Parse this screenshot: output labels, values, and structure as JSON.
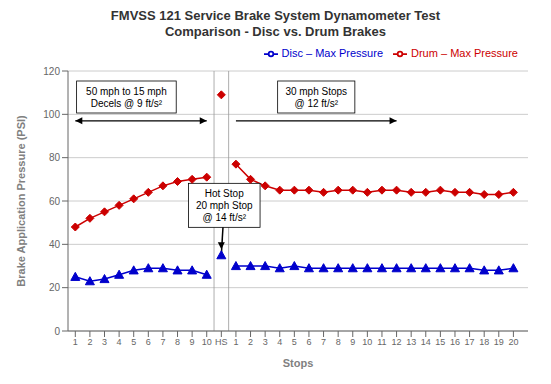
{
  "chart_data": {
    "type": "line",
    "title": "FMVSS 121 Service Brake System Dynamometer Test\nComparison - Disc vs. Drum Brakes",
    "x_label": "Stops",
    "y_label": "Brake Application Pressure (PSI)",
    "categories": [
      "1",
      "2",
      "3",
      "4",
      "5",
      "6",
      "7",
      "8",
      "9",
      "10",
      "HS",
      "1",
      "2",
      "3",
      "4",
      "5",
      "6",
      "7",
      "8",
      "9",
      "10",
      "11",
      "12",
      "13",
      "14",
      "15",
      "16",
      "17",
      "18",
      "19",
      "20"
    ],
    "ylim": [
      0,
      120
    ],
    "yticks": [
      0,
      20,
      40,
      60,
      80,
      100,
      120
    ],
    "grid": "y",
    "legend": "upper right",
    "annotations": [
      "50 mph to 15 mph\nDecels @ 9 ft/s²",
      "30 mph Stops\n@ 12 ft/s²",
      "Hot Stop\n20 mph Stop\n@ 14 ft/s²"
    ],
    "series": [
      {
        "name": "Drum – Max Pressure",
        "color": "#cc0000",
        "marker": "diamond",
        "values": [
          48,
          52,
          55,
          58,
          61,
          64,
          67,
          69,
          70,
          71,
          null,
          77,
          70,
          67,
          65,
          65,
          65,
          64,
          65,
          65,
          64,
          65,
          65,
          64,
          64,
          65,
          64,
          64,
          63,
          63,
          64
        ]
      },
      {
        "name": "Disc – Max Pressure",
        "color": "#0000cc",
        "marker": "triangle",
        "values": [
          25,
          23,
          24,
          26,
          28,
          29,
          29,
          28,
          28,
          26,
          null,
          30,
          30,
          30,
          29,
          30,
          29,
          29,
          29,
          29,
          29,
          29,
          29,
          29,
          29,
          29,
          29,
          29,
          28,
          28,
          29
        ]
      },
      {
        "type": "scatter",
        "color": "#cc0000",
        "marker": "diamond",
        "values": [
          null,
          null,
          null,
          null,
          null,
          null,
          null,
          null,
          null,
          null,
          109,
          null,
          null,
          null,
          null,
          null,
          null,
          null,
          null,
          null,
          null,
          null,
          null,
          null,
          null,
          null,
          null,
          null,
          null,
          null,
          null
        ]
      },
      {
        "type": "scatter",
        "color": "#0000cc",
        "marker": "triangle",
        "values": [
          null,
          null,
          null,
          null,
          null,
          null,
          null,
          null,
          null,
          null,
          35,
          null,
          null,
          null,
          null,
          null,
          null,
          null,
          null,
          null,
          null,
          null,
          null,
          null,
          null,
          null,
          null,
          null,
          null,
          null,
          null
        ]
      }
    ]
  }
}
